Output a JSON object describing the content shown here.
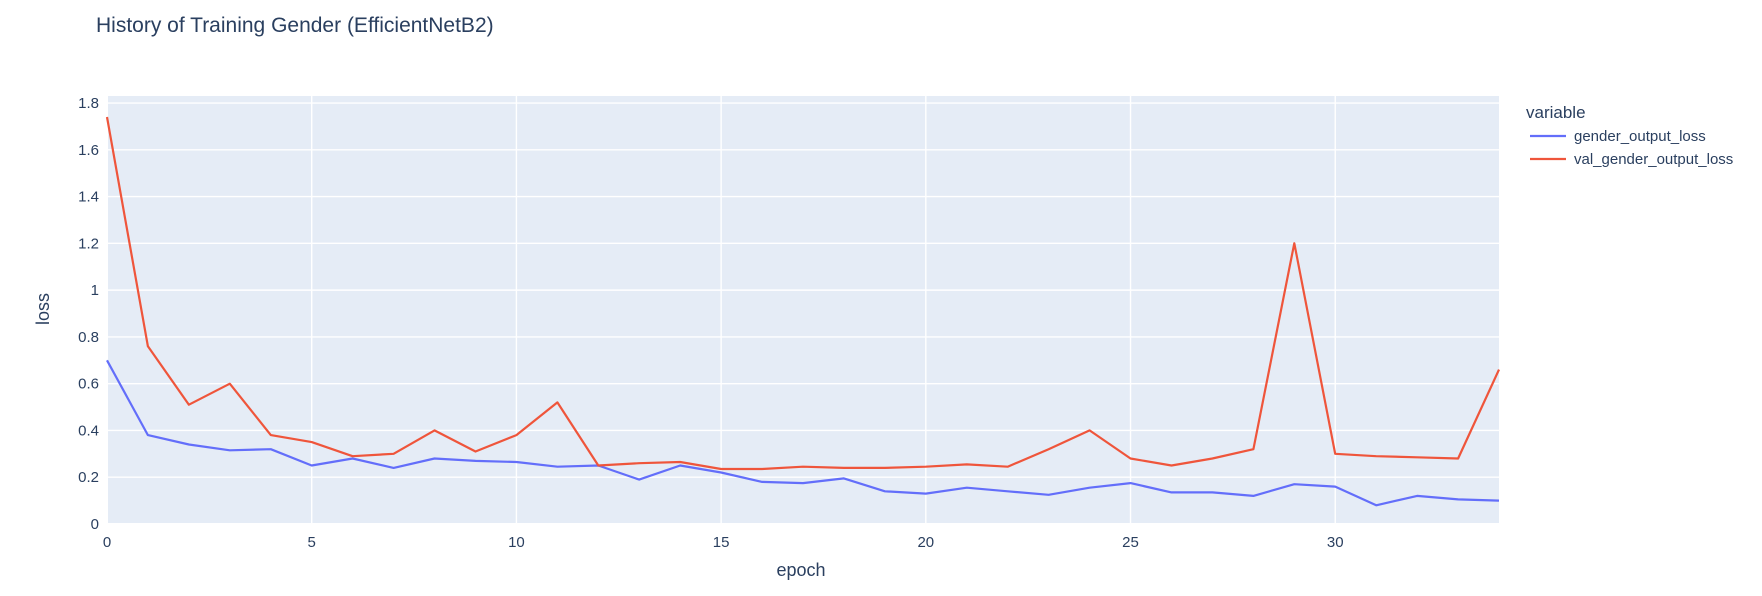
{
  "chart_data": {
    "type": "line",
    "title": "History of Training Gender (EfficientNetB2)",
    "xlabel": "epoch",
    "ylabel": "loss",
    "xlim": [
      0,
      34
    ],
    "ylim": [
      0,
      1.83
    ],
    "grid": true,
    "legend_title": "variable",
    "legend_position": "right",
    "x_ticks": [
      0,
      5,
      10,
      15,
      20,
      25,
      30
    ],
    "y_ticks": [
      0,
      0.2,
      0.4,
      0.6,
      0.8,
      1,
      1.2,
      1.4,
      1.6,
      1.8
    ],
    "x_tick_labels": [
      "0",
      "5",
      "10",
      "15",
      "20",
      "25",
      "30"
    ],
    "y_tick_labels": [
      "0",
      "0.2",
      "0.4",
      "0.6",
      "0.8",
      "1",
      "1.2",
      "1.4",
      "1.6",
      "1.8"
    ],
    "x": [
      0,
      1,
      2,
      3,
      4,
      5,
      6,
      7,
      8,
      9,
      10,
      11,
      12,
      13,
      14,
      15,
      16,
      17,
      18,
      19,
      20,
      21,
      22,
      23,
      24,
      25,
      26,
      27,
      28,
      29,
      30,
      31,
      32,
      33,
      34
    ],
    "series": [
      {
        "name": "gender_output_loss",
        "color": "#636efa",
        "values": [
          0.7,
          0.38,
          0.34,
          0.315,
          0.32,
          0.25,
          0.28,
          0.24,
          0.28,
          0.27,
          0.265,
          0.245,
          0.25,
          0.19,
          0.25,
          0.22,
          0.18,
          0.175,
          0.195,
          0.14,
          0.13,
          0.155,
          0.14,
          0.125,
          0.155,
          0.175,
          0.135,
          0.135,
          0.12,
          0.17,
          0.16,
          0.08,
          0.12,
          0.105,
          0.1
        ]
      },
      {
        "name": "val_gender_output_loss",
        "color": "#ef553b",
        "values": [
          1.74,
          0.76,
          0.51,
          0.6,
          0.38,
          0.35,
          0.29,
          0.3,
          0.4,
          0.31,
          0.38,
          0.52,
          0.25,
          0.26,
          0.265,
          0.235,
          0.235,
          0.245,
          0.24,
          0.24,
          0.245,
          0.255,
          0.245,
          0.32,
          0.4,
          0.28,
          0.25,
          0.28,
          0.32,
          1.2,
          0.3,
          0.29,
          0.285,
          0.28,
          0.66
        ]
      }
    ],
    "plot_background": "#e5ecf6"
  }
}
